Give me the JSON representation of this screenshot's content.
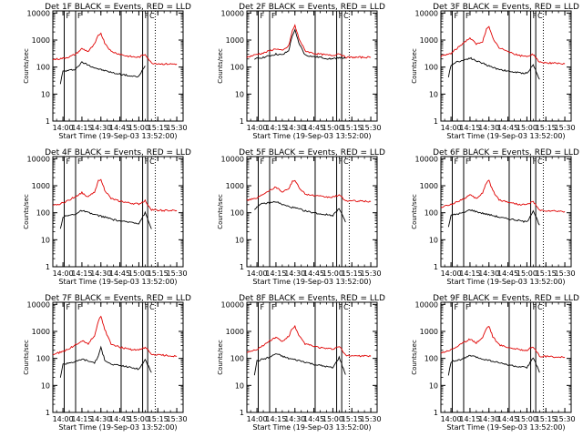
{
  "figure": {
    "xlabel": "Start Time (19-Sep-03 13:52:00)",
    "ylabel": "Counts/sec",
    "x_tick_labels": [
      "14:00",
      "14:15",
      "14:30",
      "14:45",
      "15:00",
      "15:15",
      "15:30"
    ],
    "y_tick_labels": [
      "1",
      "10",
      "100",
      "1000",
      "10000"
    ],
    "panel_titles": [
      "Det 1F BLACK = Events, RED = LLD",
      "Det 2F BLACK = Events, RED = LLD",
      "Det 3F BLACK = Events, RED = LLD",
      "Det 4F BLACK = Events, RED = LLD",
      "Det 5F BLACK = Events, RED = LLD",
      "Det 6F BLACK = Events, RED = LLD",
      "Det 7F BLACK = Events, RED = LLD",
      "Det 8F BLACK = Events, RED = LLD",
      "Det 9F BLACK = Events, RED = LLD"
    ],
    "marker_labels": {
      "attenuator": "F",
      "decimation": "C"
    },
    "colors": {
      "events": "#000000",
      "lld": "#e00000"
    }
  },
  "chart_data": [
    {
      "type": "line",
      "title": "Det 1F BLACK = Events, RED = LLD",
      "xlabel": "Start Time (19-Sep-03 13:52:00)",
      "ylabel": "Counts/sec",
      "yscale": "log",
      "ylim": [
        1,
        12000
      ],
      "xlim": [
        "13:52",
        "15:35"
      ],
      "series": [
        {
          "name": "BLACK = Events",
          "color": "#000000",
          "x": [
            "13:58",
            "14:00",
            "14:05",
            "14:10",
            "14:15",
            "14:20",
            "14:25",
            "14:30",
            "14:35",
            "14:40",
            "14:45",
            "14:50",
            "14:55",
            "15:00",
            "15:05"
          ],
          "y": [
            25,
            70,
            75,
            85,
            150,
            120,
            95,
            80,
            70,
            60,
            55,
            50,
            45,
            45,
            110
          ]
        },
        {
          "name": "RED = LLD",
          "color": "#e00000",
          "x": [
            "13:52",
            "14:00",
            "14:05",
            "14:10",
            "14:15",
            "14:20",
            "14:25",
            "14:28",
            "14:30",
            "14:33",
            "14:38",
            "14:45",
            "14:50",
            "14:55",
            "15:00",
            "15:05",
            "15:10",
            "15:20",
            "15:30"
          ],
          "y": [
            190,
            210,
            240,
            300,
            480,
            380,
            700,
            1500,
            1800,
            800,
            380,
            300,
            260,
            240,
            230,
            300,
            140,
            130,
            130
          ]
        }
      ]
    },
    {
      "type": "line",
      "title": "Det 2F BLACK = Events, RED = LLD",
      "xlabel": "Start Time (19-Sep-03 13:52:00)",
      "ylabel": "Counts/sec",
      "yscale": "log",
      "ylim": [
        1,
        12000
      ],
      "xlim": [
        "13:52",
        "15:35"
      ],
      "series": [
        {
          "name": "BLACK = Events",
          "color": "#000000",
          "x": [
            "13:58",
            "14:00",
            "14:05",
            "14:10",
            "14:15",
            "14:20",
            "14:25",
            "14:28",
            "14:30",
            "14:33",
            "14:38",
            "14:45",
            "14:50",
            "14:55",
            "15:00",
            "15:05",
            "15:10"
          ],
          "y": [
            180,
            210,
            230,
            260,
            300,
            280,
            400,
            1500,
            2300,
            800,
            280,
            240,
            230,
            210,
            200,
            230,
            210
          ]
        },
        {
          "name": "RED = LLD",
          "color": "#e00000",
          "x": [
            "13:52",
            "14:00",
            "14:05",
            "14:10",
            "14:15",
            "14:20",
            "14:25",
            "14:28",
            "14:30",
            "14:33",
            "14:38",
            "14:45",
            "14:50",
            "14:55",
            "15:00",
            "15:05",
            "15:10",
            "15:20",
            "15:30"
          ],
          "y": [
            230,
            300,
            330,
            400,
            480,
            400,
            600,
            2200,
            3500,
            1200,
            400,
            320,
            300,
            280,
            270,
            320,
            230,
            230,
            230
          ]
        }
      ]
    },
    {
      "type": "line",
      "title": "Det 3F BLACK = Events, RED = LLD",
      "xlabel": "Start Time (19-Sep-03 13:52:00)",
      "ylabel": "Counts/sec",
      "yscale": "log",
      "ylim": [
        1,
        12000
      ],
      "xlim": [
        "13:52",
        "15:35"
      ],
      "series": [
        {
          "name": "BLACK = Events",
          "color": "#000000",
          "x": [
            "13:58",
            "14:00",
            "14:05",
            "14:10",
            "14:15",
            "14:20",
            "14:25",
            "14:30",
            "14:35",
            "14:40",
            "14:45",
            "14:50",
            "14:55",
            "15:00",
            "15:05",
            "15:10"
          ],
          "y": [
            40,
            120,
            160,
            180,
            220,
            170,
            140,
            110,
            90,
            80,
            70,
            65,
            60,
            60,
            120,
            35
          ]
        },
        {
          "name": "RED = LLD",
          "color": "#e00000",
          "x": [
            "13:52",
            "14:00",
            "14:05",
            "14:10",
            "14:15",
            "14:20",
            "14:25",
            "14:28",
            "14:30",
            "14:33",
            "14:38",
            "14:45",
            "14:50",
            "14:55",
            "15:00",
            "15:05",
            "15:10",
            "15:20",
            "15:30"
          ],
          "y": [
            250,
            320,
            500,
            800,
            1200,
            700,
            900,
            2500,
            3000,
            1200,
            500,
            400,
            300,
            260,
            250,
            300,
            150,
            140,
            130
          ]
        }
      ]
    },
    {
      "type": "line",
      "title": "Det 4F BLACK = Events, RED = LLD",
      "xlabel": "Start Time (19-Sep-03 13:52:00)",
      "ylabel": "Counts/sec",
      "yscale": "log",
      "ylim": [
        1,
        12000
      ],
      "xlim": [
        "13:52",
        "15:35"
      ],
      "series": [
        {
          "name": "BLACK = Events",
          "color": "#000000",
          "x": [
            "13:58",
            "14:00",
            "14:05",
            "14:10",
            "14:15",
            "14:20",
            "14:25",
            "14:30",
            "14:35",
            "14:40",
            "14:45",
            "14:50",
            "14:55",
            "15:00",
            "15:05",
            "15:10"
          ],
          "y": [
            25,
            70,
            80,
            90,
            120,
            100,
            85,
            75,
            65,
            55,
            50,
            45,
            45,
            40,
            100,
            25
          ]
        },
        {
          "name": "RED = LLD",
          "color": "#e00000",
          "x": [
            "13:52",
            "14:00",
            "14:05",
            "14:10",
            "14:15",
            "14:20",
            "14:25",
            "14:28",
            "14:30",
            "14:33",
            "14:38",
            "14:45",
            "14:50",
            "14:55",
            "15:00",
            "15:05",
            "15:10",
            "15:20",
            "15:30"
          ],
          "y": [
            180,
            230,
            300,
            400,
            550,
            380,
            600,
            1500,
            1800,
            700,
            330,
            270,
            240,
            220,
            210,
            280,
            130,
            120,
            120
          ]
        }
      ]
    },
    {
      "type": "line",
      "title": "Det 5F BLACK = Events, RED = LLD",
      "xlabel": "Start Time (19-Sep-03 13:52:00)",
      "ylabel": "Counts/sec",
      "yscale": "log",
      "ylim": [
        1,
        12000
      ],
      "xlim": [
        "13:52",
        "15:35"
      ],
      "series": [
        {
          "name": "BLACK = Events",
          "color": "#000000",
          "x": [
            "13:58",
            "14:00",
            "14:05",
            "14:10",
            "14:15",
            "14:20",
            "14:25",
            "14:30",
            "14:35",
            "14:40",
            "14:45",
            "14:50",
            "14:55",
            "15:00",
            "15:05",
            "15:10"
          ],
          "y": [
            130,
            170,
            220,
            230,
            260,
            200,
            170,
            150,
            130,
            110,
            100,
            90,
            85,
            80,
            150,
            45
          ]
        },
        {
          "name": "RED = LLD",
          "color": "#e00000",
          "x": [
            "13:52",
            "14:00",
            "14:05",
            "14:10",
            "14:15",
            "14:20",
            "14:25",
            "14:28",
            "14:30",
            "14:33",
            "14:38",
            "14:45",
            "14:50",
            "14:55",
            "15:00",
            "15:05",
            "15:10",
            "15:20",
            "15:30"
          ],
          "y": [
            300,
            350,
            500,
            700,
            900,
            600,
            800,
            1400,
            1600,
            900,
            500,
            430,
            400,
            380,
            380,
            450,
            280,
            270,
            260
          ]
        }
      ]
    },
    {
      "type": "line",
      "title": "Det 6F BLACK = Events, RED = LLD",
      "xlabel": "Start Time (19-Sep-03 13:52:00)",
      "ylabel": "Counts/sec",
      "yscale": "log",
      "ylim": [
        1,
        12000
      ],
      "xlim": [
        "13:52",
        "15:35"
      ],
      "series": [
        {
          "name": "BLACK = Events",
          "color": "#000000",
          "x": [
            "13:58",
            "14:00",
            "14:05",
            "14:10",
            "14:15",
            "14:20",
            "14:25",
            "14:30",
            "14:35",
            "14:40",
            "14:45",
            "14:50",
            "14:55",
            "15:00",
            "15:05",
            "15:10"
          ],
          "y": [
            30,
            80,
            90,
            100,
            130,
            110,
            95,
            85,
            75,
            65,
            60,
            55,
            50,
            45,
            120,
            35
          ]
        },
        {
          "name": "RED = LLD",
          "color": "#e00000",
          "x": [
            "13:52",
            "14:00",
            "14:05",
            "14:10",
            "14:15",
            "14:20",
            "14:25",
            "14:28",
            "14:30",
            "14:33",
            "14:38",
            "14:45",
            "14:50",
            "14:55",
            "15:00",
            "15:05",
            "15:10",
            "15:20",
            "15:30"
          ],
          "y": [
            160,
            200,
            260,
            330,
            450,
            330,
            550,
            1300,
            1600,
            650,
            300,
            250,
            220,
            200,
            200,
            260,
            120,
            115,
            110
          ]
        }
      ]
    },
    {
      "type": "line",
      "title": "Det 7F BLACK = Events, RED = LLD",
      "xlabel": "Start Time (19-Sep-03 13:52:00)",
      "ylabel": "Counts/sec",
      "yscale": "log",
      "ylim": [
        1,
        12000
      ],
      "xlim": [
        "13:52",
        "15:35"
      ],
      "series": [
        {
          "name": "BLACK = Events",
          "color": "#000000",
          "x": [
            "13:58",
            "14:00",
            "14:05",
            "14:10",
            "14:15",
            "14:20",
            "14:25",
            "14:28",
            "14:30",
            "14:33",
            "14:38",
            "14:45",
            "14:50",
            "14:55",
            "15:00",
            "15:05",
            "15:10"
          ],
          "y": [
            20,
            60,
            70,
            75,
            95,
            80,
            70,
            120,
            250,
            90,
            60,
            55,
            50,
            45,
            40,
            90,
            30
          ]
        },
        {
          "name": "RED = LLD",
          "color": "#e00000",
          "x": [
            "13:52",
            "14:00",
            "14:05",
            "14:10",
            "14:15",
            "14:20",
            "14:25",
            "14:28",
            "14:30",
            "14:33",
            "14:38",
            "14:45",
            "14:50",
            "14:55",
            "15:00",
            "15:05",
            "15:10",
            "15:20",
            "15:30"
          ],
          "y": [
            140,
            180,
            230,
            320,
            450,
            350,
            700,
            2500,
            3500,
            1200,
            350,
            260,
            230,
            210,
            200,
            260,
            140,
            130,
            120
          ]
        }
      ]
    },
    {
      "type": "line",
      "title": "Det 8F BLACK = Events, RED = LLD",
      "xlabel": "Start Time (19-Sep-03 13:52:00)",
      "ylabel": "Counts/sec",
      "yscale": "log",
      "ylim": [
        1,
        12000
      ],
      "xlim": [
        "13:52",
        "15:35"
      ],
      "series": [
        {
          "name": "BLACK = Events",
          "color": "#000000",
          "x": [
            "13:58",
            "14:00",
            "14:05",
            "14:10",
            "14:15",
            "14:20",
            "14:25",
            "14:30",
            "14:35",
            "14:40",
            "14:45",
            "14:50",
            "14:55",
            "15:00",
            "15:05",
            "15:10"
          ],
          "y": [
            25,
            80,
            95,
            110,
            150,
            120,
            100,
            90,
            80,
            70,
            60,
            55,
            50,
            45,
            110,
            25
          ]
        },
        {
          "name": "RED = LLD",
          "color": "#e00000",
          "x": [
            "13:52",
            "14:00",
            "14:05",
            "14:10",
            "14:15",
            "14:20",
            "14:25",
            "14:28",
            "14:30",
            "14:33",
            "14:38",
            "14:45",
            "14:50",
            "14:55",
            "15:00",
            "15:05",
            "15:10",
            "15:20",
            "15:30"
          ],
          "y": [
            170,
            220,
            300,
            450,
            600,
            420,
            650,
            1300,
            1500,
            700,
            350,
            280,
            250,
            230,
            220,
            280,
            130,
            125,
            120
          ]
        }
      ]
    },
    {
      "type": "line",
      "title": "Det 9F BLACK = Events, RED = LLD",
      "xlabel": "Start Time (19-Sep-03 13:52:00)",
      "ylabel": "Counts/sec",
      "yscale": "log",
      "ylim": [
        1,
        12000
      ],
      "xlim": [
        "13:52",
        "15:35"
      ],
      "series": [
        {
          "name": "BLACK = Events",
          "color": "#000000",
          "x": [
            "13:58",
            "14:00",
            "14:05",
            "14:10",
            "14:15",
            "14:20",
            "14:25",
            "14:30",
            "14:35",
            "14:40",
            "14:45",
            "14:50",
            "14:55",
            "15:00",
            "15:05",
            "15:10"
          ],
          "y": [
            25,
            75,
            85,
            95,
            130,
            110,
            95,
            85,
            75,
            65,
            58,
            52,
            48,
            45,
            110,
            30
          ]
        },
        {
          "name": "RED = LLD",
          "color": "#e00000",
          "x": [
            "13:52",
            "14:00",
            "14:05",
            "14:10",
            "14:15",
            "14:20",
            "14:25",
            "14:28",
            "14:30",
            "14:33",
            "14:38",
            "14:45",
            "14:50",
            "14:55",
            "15:00",
            "15:05",
            "15:10",
            "15:20",
            "15:30"
          ],
          "y": [
            160,
            210,
            280,
            380,
            520,
            380,
            600,
            1300,
            1600,
            650,
            320,
            260,
            230,
            210,
            200,
            270,
            120,
            115,
            110
          ]
        }
      ]
    }
  ]
}
